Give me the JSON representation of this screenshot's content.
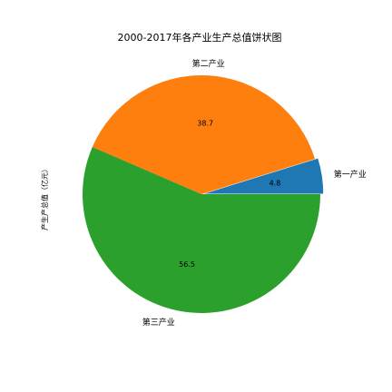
{
  "chart_data": {
    "type": "pie",
    "title": "2000-2017年各产业生产总值饼状图",
    "ylabel": "产生产总值（亿元）",
    "slices": [
      {
        "label": "第一产业",
        "value": 4.8,
        "pct_label": "4.8",
        "color": "#1f77b4",
        "explode": true
      },
      {
        "label": "第二产业",
        "value": 38.7,
        "pct_label": "38.7",
        "color": "#ff7f0e",
        "explode": false
      },
      {
        "label": "第三产业",
        "value": 56.5,
        "pct_label": "56.5",
        "color": "#2ca02c",
        "explode": false
      }
    ],
    "start_angle_deg": 0,
    "direction": "counterclockwise"
  }
}
